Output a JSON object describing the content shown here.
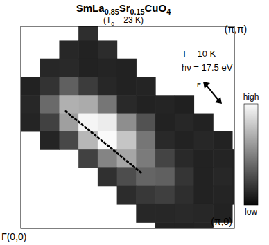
{
  "chart_data": {
    "type": "heatmap",
    "title": "SmLa0.85Sr0.15CuO4",
    "subtitle": "(Tc = 23 K)",
    "annotations": [
      "T = 10 K",
      "hν = 17.5 eV",
      "E"
    ],
    "xlim": [
      0,
      1
    ],
    "ylim": [
      0,
      1
    ],
    "tick_labels": false,
    "x": [
      0.045,
      0.135,
      0.225,
      0.315,
      0.405,
      0.495,
      0.585,
      0.675,
      0.765,
      0.855,
      0.945,
      1.035
    ],
    "y": [
      0.975,
      0.885,
      0.795,
      0.705,
      0.615,
      0.525,
      0.435,
      0.345,
      0.255,
      0.165,
      0.075,
      -0.015
    ],
    "cells": [
      [
        null,
        null,
        null,
        0.15,
        null,
        null,
        null,
        null,
        null,
        null,
        null,
        null
      ],
      [
        null,
        null,
        0.12,
        0.1,
        0.14,
        null,
        null,
        null,
        null,
        null,
        null,
        null
      ],
      [
        null,
        0.12,
        0.13,
        0.1,
        0.11,
        0.1,
        null,
        null,
        null,
        null,
        null,
        null
      ],
      [
        0.1,
        0.17,
        0.36,
        0.21,
        0.12,
        0.1,
        0.11,
        null,
        null,
        null,
        null,
        null
      ],
      [
        0.12,
        0.4,
        0.69,
        0.67,
        0.45,
        0.13,
        0.1,
        0.11,
        0.09,
        null,
        null,
        null
      ],
      [
        0.11,
        0.23,
        0.62,
        0.98,
        0.94,
        0.55,
        0.3,
        0.1,
        0.12,
        0.1,
        null,
        null
      ],
      [
        null,
        0.11,
        0.26,
        0.72,
        1.0,
        0.78,
        0.45,
        0.13,
        0.1,
        0.12,
        0.1,
        null
      ],
      [
        null,
        null,
        null,
        0.23,
        0.51,
        0.65,
        0.47,
        0.24,
        0.13,
        0.1,
        0.11,
        0.1
      ],
      [
        null,
        null,
        null,
        null,
        0.16,
        0.28,
        0.38,
        0.36,
        0.18,
        0.1,
        0.12,
        0.1
      ],
      [
        null,
        null,
        null,
        null,
        null,
        0.14,
        0.19,
        0.22,
        0.15,
        0.1,
        0.11,
        0.1
      ],
      [
        null,
        null,
        null,
        null,
        null,
        null,
        0.12,
        0.12,
        0.13,
        0.12,
        0.1,
        null
      ],
      [
        null,
        null,
        null,
        null,
        null,
        null,
        null,
        0.1,
        0.1,
        0.11,
        null,
        null
      ]
    ],
    "colorbar": {
      "range": [
        0,
        1
      ],
      "ticks": [
        {
          "value": 0,
          "label": "low"
        },
        {
          "value": 1,
          "label": "high"
        }
      ]
    },
    "series": [
      {
        "type": "line",
        "line_style": "dotted",
        "x": [
          0.21,
          0.57
        ],
        "values": [
          0.58,
          0.27
        ]
      }
    ],
    "corner_labels": [
      {
        "x": 0,
        "y": 0,
        "label": "Γ(0,0)"
      },
      {
        "x": 1,
        "y": 0,
        "label": "(π,0)"
      },
      {
        "x": 1,
        "y": 1,
        "label": "(π,π)"
      }
    ]
  }
}
